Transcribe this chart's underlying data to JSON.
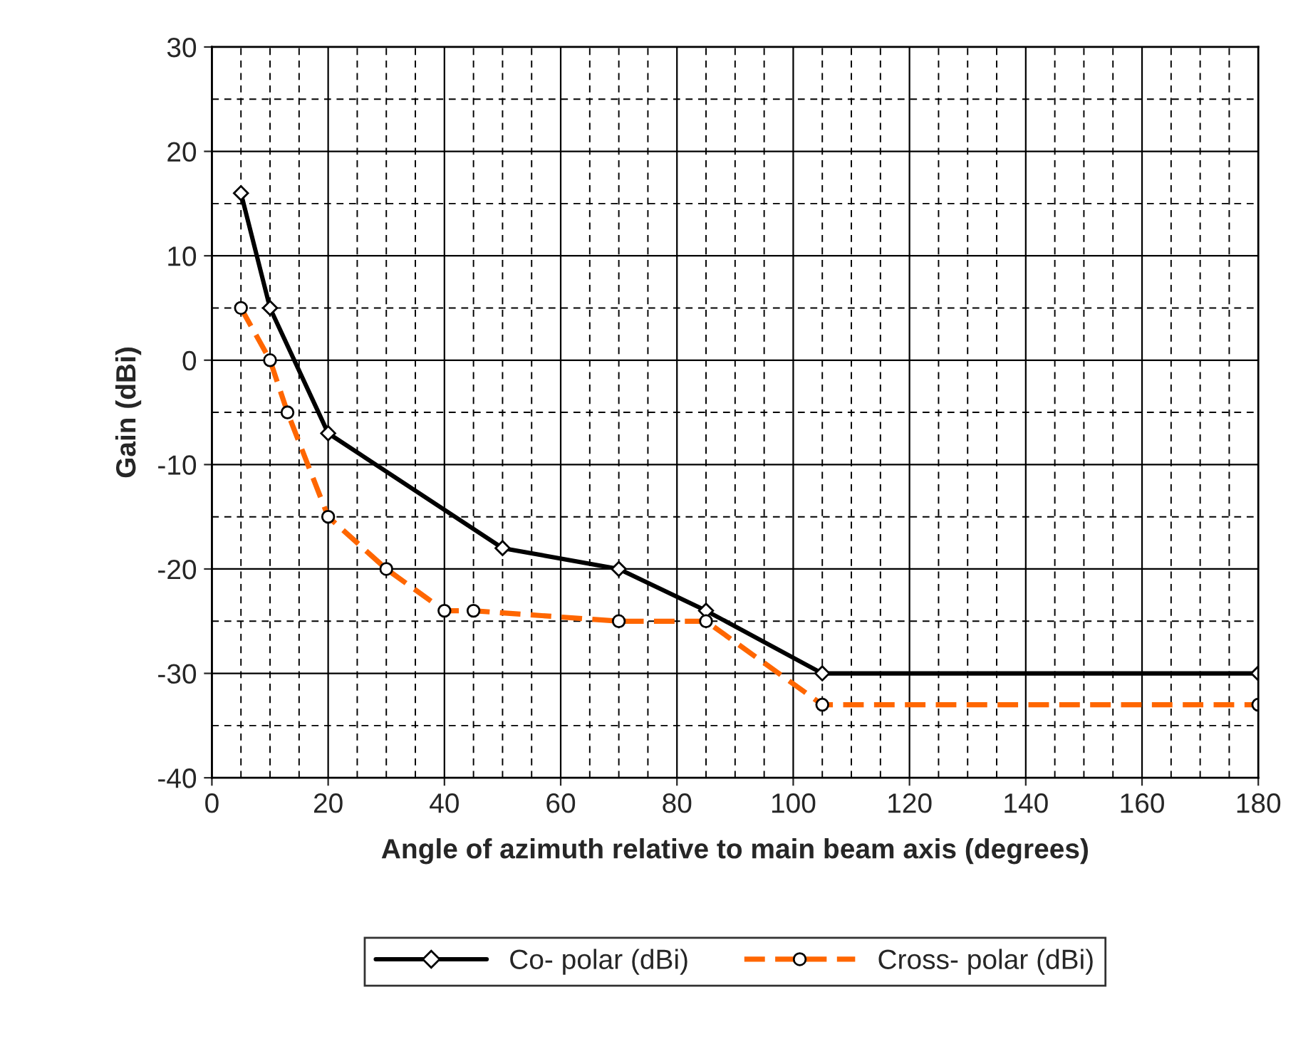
{
  "chart_data": {
    "type": "line",
    "xlabel": "Angle of azimuth relative to main beam axis (degrees)",
    "ylabel": "Gain (dBi)",
    "xlim": [
      0,
      180
    ],
    "xticks": [
      0,
      20,
      40,
      60,
      80,
      100,
      120,
      140,
      160,
      180
    ],
    "ylim": [
      -40,
      30
    ],
    "yticks": [
      -40,
      -30,
      -20,
      -10,
      0,
      10,
      20,
      30
    ],
    "grid": true,
    "legend": "bottom",
    "series": [
      {
        "name": "Co- polar (dBi)",
        "color": "#000000",
        "marker": "diamond",
        "line_style": "solid",
        "x": [
          5,
          10,
          20,
          50,
          70,
          85,
          105,
          180
        ],
        "values": [
          16,
          5,
          -7,
          -18,
          -20,
          -24,
          -30,
          -30
        ]
      },
      {
        "name": "Cross- polar (dBi)",
        "color": "#ff6600",
        "marker": "circle",
        "line_style": "dashed",
        "x": [
          5,
          10,
          13,
          20,
          30,
          40,
          45,
          70,
          85,
          105,
          180
        ],
        "values": [
          5,
          0,
          -5,
          -15,
          -20,
          -24,
          -24,
          -25,
          -25,
          -33,
          -33
        ]
      }
    ]
  }
}
